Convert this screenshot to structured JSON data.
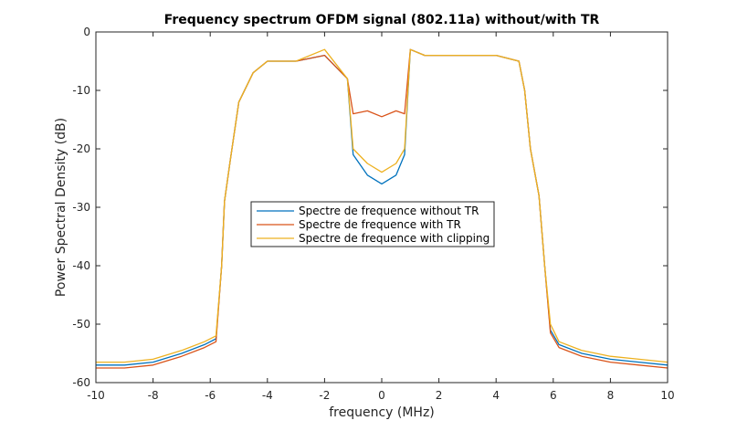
{
  "chart_data": {
    "type": "line",
    "title": "Frequency spectrum OFDM signal (802.11a) without/with TR",
    "xlabel": "frequency (MHz)",
    "ylabel": "Power Spectral Density (dB)",
    "xlim": [
      -10,
      10
    ],
    "ylim": [
      -60,
      0
    ],
    "xticks": [
      -10,
      -8,
      -6,
      -4,
      -2,
      0,
      2,
      4,
      6,
      8,
      10
    ],
    "yticks": [
      -60,
      -50,
      -40,
      -30,
      -20,
      -10,
      0
    ],
    "grid": false,
    "legend_position": "center",
    "x": [
      -10,
      -9,
      -8,
      -7,
      -6.2,
      -5.8,
      -5.6,
      -5.5,
      -5.3,
      -5,
      -4.5,
      -4,
      -3,
      -2,
      -1.2,
      -1,
      -0.5,
      0,
      0.5,
      0.8,
      1,
      1.5,
      2,
      3,
      4,
      4.8,
      5,
      5.2,
      5.5,
      5.7,
      5.9,
      6.2,
      7,
      8,
      9,
      10
    ],
    "series": [
      {
        "name": "Spectre de frequence without TR",
        "color": "#0072BD",
        "values": [
          -57,
          -57,
          -56.5,
          -55,
          -53.5,
          -52.5,
          -40,
          -29,
          -22,
          -12,
          -7,
          -5,
          -5,
          -4,
          -8,
          -21,
          -24.5,
          -26,
          -24.5,
          -21,
          -3,
          -4,
          -4,
          -4,
          -4,
          -5,
          -10,
          -20,
          -28,
          -40,
          -51,
          -53.5,
          -55,
          -56,
          -56.5,
          -57
        ]
      },
      {
        "name": "Spectre de frequence with TR",
        "color": "#D95319",
        "values": [
          -57.5,
          -57.5,
          -57,
          -55.5,
          -54,
          -53,
          -40,
          -29,
          -22,
          -12,
          -7,
          -5,
          -5,
          -4,
          -8,
          -14,
          -13.5,
          -14.5,
          -13.5,
          -14,
          -3,
          -4,
          -4,
          -4,
          -4,
          -5,
          -10,
          -20,
          -28,
          -40,
          -51.5,
          -54,
          -55.5,
          -56.5,
          -57,
          -57.5
        ]
      },
      {
        "name": "Spectre de frequence with clipping",
        "color": "#EDB120",
        "values": [
          -56.5,
          -56.5,
          -56,
          -54.5,
          -53,
          -52,
          -40,
          -29,
          -22,
          -12,
          -7,
          -5,
          -5,
          -3,
          -8,
          -20,
          -22.5,
          -24,
          -22.5,
          -20,
          -3,
          -4,
          -4,
          -4,
          -4,
          -5,
          -10,
          -20,
          -28,
          -40,
          -50,
          -53,
          -54.5,
          -55.5,
          -56,
          -56.5
        ]
      }
    ]
  }
}
